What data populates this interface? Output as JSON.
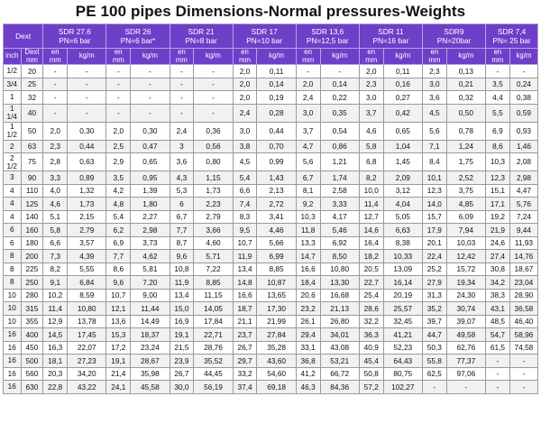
{
  "title": "PE 100 pipes Dimensions-Normal pressures-Weights",
  "header": {
    "dext": "Dext",
    "inch": "inch",
    "mm": "mm",
    "en": "en",
    "kgm": "kg/m",
    "sdr": [
      {
        "line1": "SDR 27.6",
        "line2": "PN=6 bar"
      },
      {
        "line1": "SDR 26",
        "line2": "PN=6 bar*"
      },
      {
        "line1": "SDR 21",
        "line2": "PN=8 bar"
      },
      {
        "line1": "SDR 17",
        "line2": "PN=10 bar"
      },
      {
        "line1": "SDR 13,6",
        "line2": "PN=12,5 bar"
      },
      {
        "line1": "SDR 11",
        "line2": "PN=16 bar"
      },
      {
        "line1": "SDR9",
        "line2": "PN=20bar"
      },
      {
        "line1": "SDR 7,4",
        "line2": "PN= 25 bar"
      }
    ]
  },
  "rows": [
    {
      "inch": "1/2",
      "d": "20",
      "v": [
        "-",
        "-",
        "-",
        "-",
        "-",
        "-",
        "2,0",
        "0,11",
        "-",
        "-",
        "2,0",
        "0,11",
        "2,3",
        "0,13",
        "-",
        "-"
      ]
    },
    {
      "inch": "3/4",
      "d": "25",
      "v": [
        "-",
        "-",
        "-",
        "-",
        "-",
        "-",
        "2,0",
        "0,14",
        "2,0",
        "0,14",
        "2,3",
        "0,16",
        "3,0",
        "0,21",
        "3,5",
        "0,24"
      ]
    },
    {
      "inch": "1",
      "d": "32",
      "v": [
        "-",
        "-",
        "-",
        "-",
        "-",
        "-",
        "2,0",
        "0,19",
        "2,4",
        "0,22",
        "3,0",
        "0,27",
        "3,6",
        "0,32",
        "4,4",
        "0,38"
      ]
    },
    {
      "inch": "1 1/4",
      "d": "40",
      "v": [
        "-",
        "-",
        "-",
        "-",
        "-",
        "-",
        "2,4",
        "0,28",
        "3,0",
        "0,35",
        "3,7",
        "0,42",
        "4,5",
        "0,50",
        "5,5",
        "0,59"
      ]
    },
    {
      "inch": "1 1/2",
      "d": "50",
      "v": [
        "2,0",
        "0,30",
        "2,0",
        "0,30",
        "2,4",
        "0,36",
        "3,0",
        "0,44",
        "3,7",
        "0,54",
        "4,6",
        "0,65",
        "5,6",
        "0,78",
        "6,9",
        "0,93"
      ]
    },
    {
      "inch": "2",
      "d": "63",
      "v": [
        "2,3",
        "0,44",
        "2,5",
        "0,47",
        "3",
        "0,56",
        "3,8",
        "0,70",
        "4,7",
        "0,86",
        "5,8",
        "1,04",
        "7,1",
        "1,24",
        "8,6",
        "1,46"
      ]
    },
    {
      "inch": "2 1/2",
      "d": "75",
      "v": [
        "2,8",
        "0,63",
        "2,9",
        "0,65",
        "3,6",
        "0,80",
        "4,5",
        "0,99",
        "5,6",
        "1,21",
        "6,8",
        "1,45",
        "8,4",
        "1,75",
        "10,3",
        "2,08"
      ]
    },
    {
      "inch": "3",
      "d": "90",
      "v": [
        "3,3",
        "0,89",
        "3,5",
        "0,95",
        "4,3",
        "1,15",
        "5,4",
        "1,43",
        "6,7",
        "1,74",
        "8,2",
        "2,09",
        "10,1",
        "2,52",
        "12,3",
        "2,98"
      ]
    },
    {
      "inch": "4",
      "d": "110",
      "v": [
        "4,0",
        "1,32",
        "4,2",
        "1,39",
        "5,3",
        "1,73",
        "6,6",
        "2,13",
        "8,1",
        "2,58",
        "10,0",
        "3,12",
        "12,3",
        "3,75",
        "15,1",
        "4,47"
      ]
    },
    {
      "inch": "4",
      "d": "125",
      "v": [
        "4,6",
        "1,73",
        "4,8",
        "1,80",
        "6",
        "2,23",
        "7,4",
        "2,72",
        "9,2",
        "3,33",
        "11,4",
        "4,04",
        "14,0",
        "4,85",
        "17,1",
        "5,76"
      ]
    },
    {
      "inch": "4",
      "d": "140",
      "v": [
        "5,1",
        "2,15",
        "5,4",
        "2,27",
        "6,7",
        "2,79",
        "8,3",
        "3,41",
        "10,3",
        "4,17",
        "12,7",
        "5,05",
        "15,7",
        "6,09",
        "19,2",
        "7,24"
      ]
    },
    {
      "inch": "6",
      "d": "160",
      "v": [
        "5,8",
        "2,79",
        "6,2",
        "2,98",
        "7,7",
        "3,66",
        "9,5",
        "4,46",
        "11,8",
        "5,46",
        "14,6",
        "6,63",
        "17,9",
        "7,94",
        "21,9",
        "9,44"
      ]
    },
    {
      "inch": "6",
      "d": "180",
      "v": [
        "6,6",
        "3,57",
        "6,9",
        "3,73",
        "8,7",
        "4,60",
        "10,7",
        "5,66",
        "13,3",
        "6,92",
        "16,4",
        "8,38",
        "20,1",
        "10,03",
        "24,6",
        "11,93"
      ]
    },
    {
      "inch": "8",
      "d": "200",
      "v": [
        "7,3",
        "4,39",
        "7,7",
        "4,62",
        "9,6",
        "5,71",
        "11,9",
        "6,99",
        "14,7",
        "8,50",
        "18,2",
        "10,33",
        "22,4",
        "12,42",
        "27,4",
        "14,76"
      ]
    },
    {
      "inch": "8",
      "d": "225",
      "v": [
        "8,2",
        "5,55",
        "8,6",
        "5,81",
        "10,8",
        "7,22",
        "13,4",
        "8,85",
        "16,6",
        "10,80",
        "20,5",
        "13,09",
        "25,2",
        "15,72",
        "30,8",
        "18,67"
      ]
    },
    {
      "inch": "8",
      "d": "250",
      "v": [
        "9,1",
        "6,84",
        "9,6",
        "7,20",
        "11,9",
        "8,85",
        "14,8",
        "10,87",
        "18,4",
        "13,30",
        "22,7",
        "16,14",
        "27,9",
        "19,34",
        "34,2",
        "23,04"
      ]
    },
    {
      "inch": "10",
      "d": "280",
      "v": [
        "10,2",
        "8,59",
        "10,7",
        "9,00",
        "13,4",
        "11,15",
        "16,6",
        "13,65",
        "20,6",
        "16,68",
        "25,4",
        "20,19",
        "31,3",
        "24,30",
        "38,3",
        "28,90"
      ]
    },
    {
      "inch": "10",
      "d": "315",
      "v": [
        "11,4",
        "10,80",
        "12,1",
        "11,44",
        "15,0",
        "14,05",
        "18,7",
        "17,30",
        "23,2",
        "21,13",
        "28,6",
        "25,57",
        "35,2",
        "30,74",
        "43,1",
        "36,58"
      ]
    },
    {
      "inch": "10",
      "d": "355",
      "v": [
        "12,9",
        "13,78",
        "13,6",
        "14,49",
        "16,9",
        "17,84",
        "21,1",
        "21,99",
        "26,1",
        "26,80",
        "32,2",
        "32,45",
        "39,7",
        "39,07",
        "48,5",
        "46,40"
      ]
    },
    {
      "inch": "16",
      "d": "400",
      "v": [
        "14,5",
        "17,45",
        "15,3",
        "18,37",
        "19,1",
        "22,71",
        "23,7",
        "27,84",
        "29,4",
        "34,01",
        "36,3",
        "41,21",
        "44,7",
        "49,58",
        "54,7",
        "58,96"
      ]
    },
    {
      "inch": "16",
      "d": "450",
      "v": [
        "16,3",
        "22,07",
        "17,2",
        "23,24",
        "21,5",
        "28,76",
        "26,7",
        "35,28",
        "33,1",
        "43,08",
        "40,9",
        "52,23",
        "50,3",
        "62,76",
        "61,5",
        "74,58"
      ]
    },
    {
      "inch": "16",
      "d": "500",
      "v": [
        "18,1",
        "27,23",
        "19,1",
        "28,67",
        "23,9",
        "35,52",
        "29,7",
        "43,60",
        "36,8",
        "53,21",
        "45,4",
        "64,43",
        "55,8",
        "77,37",
        "-",
        "-"
      ]
    },
    {
      "inch": "16",
      "d": "560",
      "v": [
        "20,3",
        "34,20",
        "21,4",
        "35,98",
        "26,7",
        "44,45",
        "33,2",
        "54,60",
        "41,2",
        "66,72",
        "50,8",
        "80,75",
        "62,5",
        "97,06",
        "-",
        "-"
      ]
    },
    {
      "inch": "16",
      "d": "630",
      "v": [
        "22,8",
        "43,22",
        "24,1",
        "45,58",
        "30,0",
        "56,19",
        "37,4",
        "69,18",
        "46,3",
        "84,36",
        "57,2",
        "102,27",
        "-",
        "-",
        "-",
        "-"
      ]
    }
  ]
}
